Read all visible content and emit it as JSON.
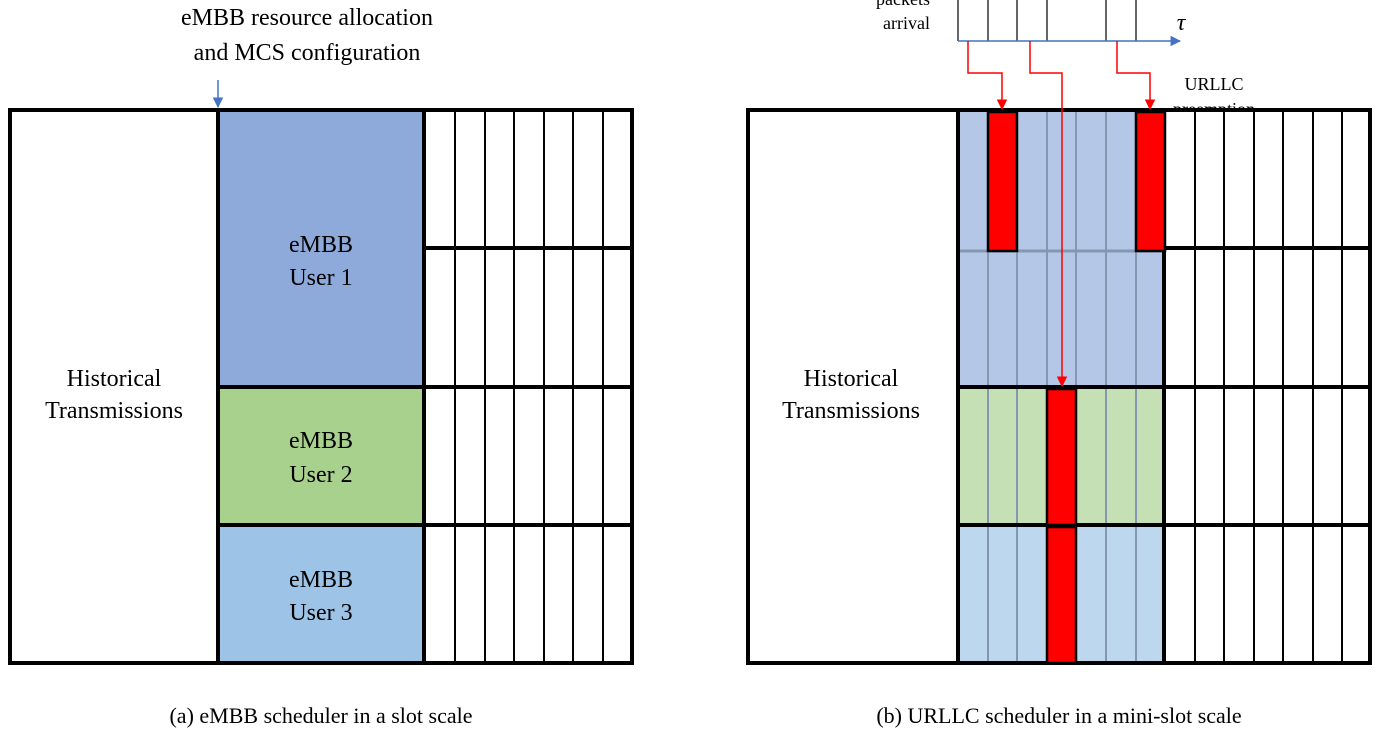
{
  "panel_a": {
    "top_label_line1": "eMBB resource allocation",
    "top_label_line2": "and MCS configuration",
    "historical_line1": "Historical",
    "historical_line2": "Transmissions",
    "users": [
      {
        "line1": "eMBB",
        "line2": "User 1",
        "color": "#8eaadb"
      },
      {
        "line1": "eMBB",
        "line2": "User 2",
        "color": "#a9d18e"
      },
      {
        "line1": "eMBB",
        "line2": "User 3",
        "color": "#9dc3e6"
      }
    ],
    "caption": "(a) eMBB scheduler in a slot scale"
  },
  "panel_b": {
    "arrival_line1": "packets",
    "arrival_line2": "arrival",
    "axis_symbol": "τ",
    "preemption_line1": "URLLC",
    "preemption_line2": "preemption",
    "historical_line1": "Historical",
    "historical_line2": "Transmissions",
    "user_colors": [
      "#b4c7e7",
      "#c5e0b4",
      "#bdd7ee"
    ],
    "urllc_color": "#ff0000",
    "caption": "(b) URLLC scheduler in a mini-slot scale"
  }
}
